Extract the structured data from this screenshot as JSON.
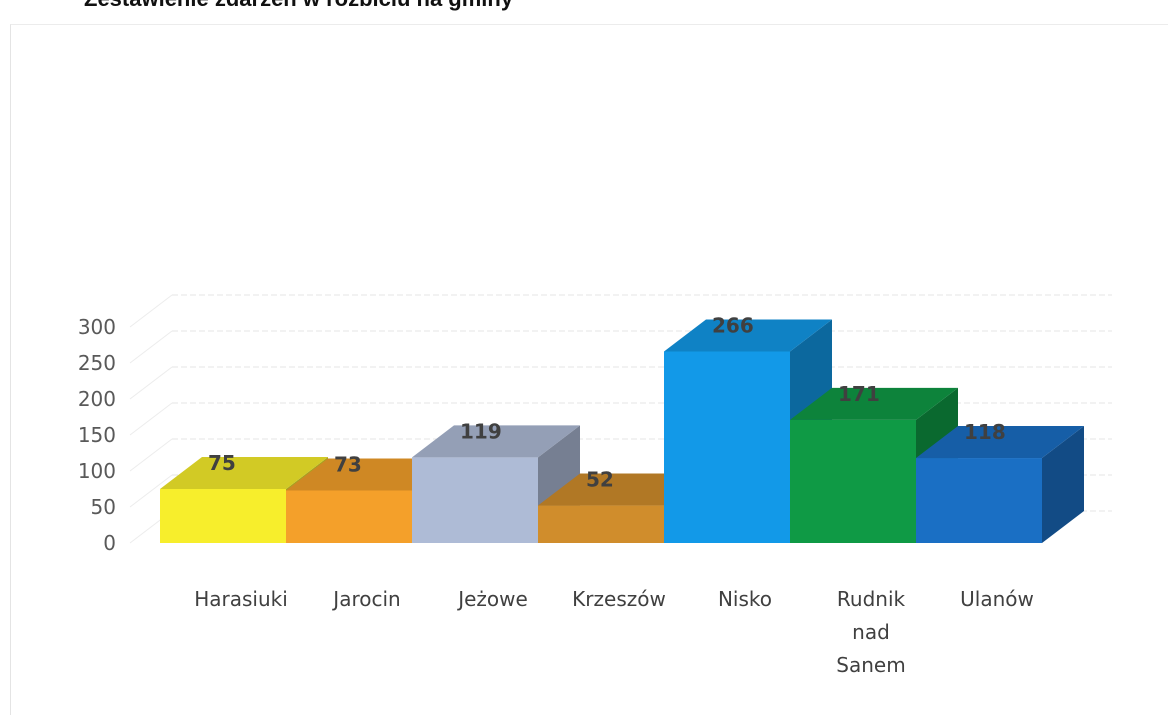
{
  "chart_data": {
    "type": "bar",
    "title": "Zestawienie zdarzeń w rozbiciu na gminy",
    "categories": [
      "Harasiuki",
      "Jarocin",
      "Jeżowe",
      "Krzeszów",
      "Nisko",
      [
        "Rudnik",
        "nad",
        "Sanem"
      ],
      "Ulanów"
    ],
    "values": [
      75,
      73,
      119,
      52,
      266,
      171,
      118
    ],
    "value_labels": [
      "75",
      "73",
      "119",
      "52",
      "266",
      "171",
      "118"
    ],
    "colors": [
      "#f7ee2c",
      "#f4a02a",
      "#aebbd6",
      "#d08d2c",
      "#1299e8",
      "#0f9a45",
      "#1a6fc4"
    ],
    "yticks": [
      "0",
      "50",
      "100",
      "150",
      "200",
      "250",
      "300"
    ],
    "ylim": [
      0,
      300
    ],
    "grid": true,
    "style": "3d-clustered-column",
    "legend": "none"
  }
}
